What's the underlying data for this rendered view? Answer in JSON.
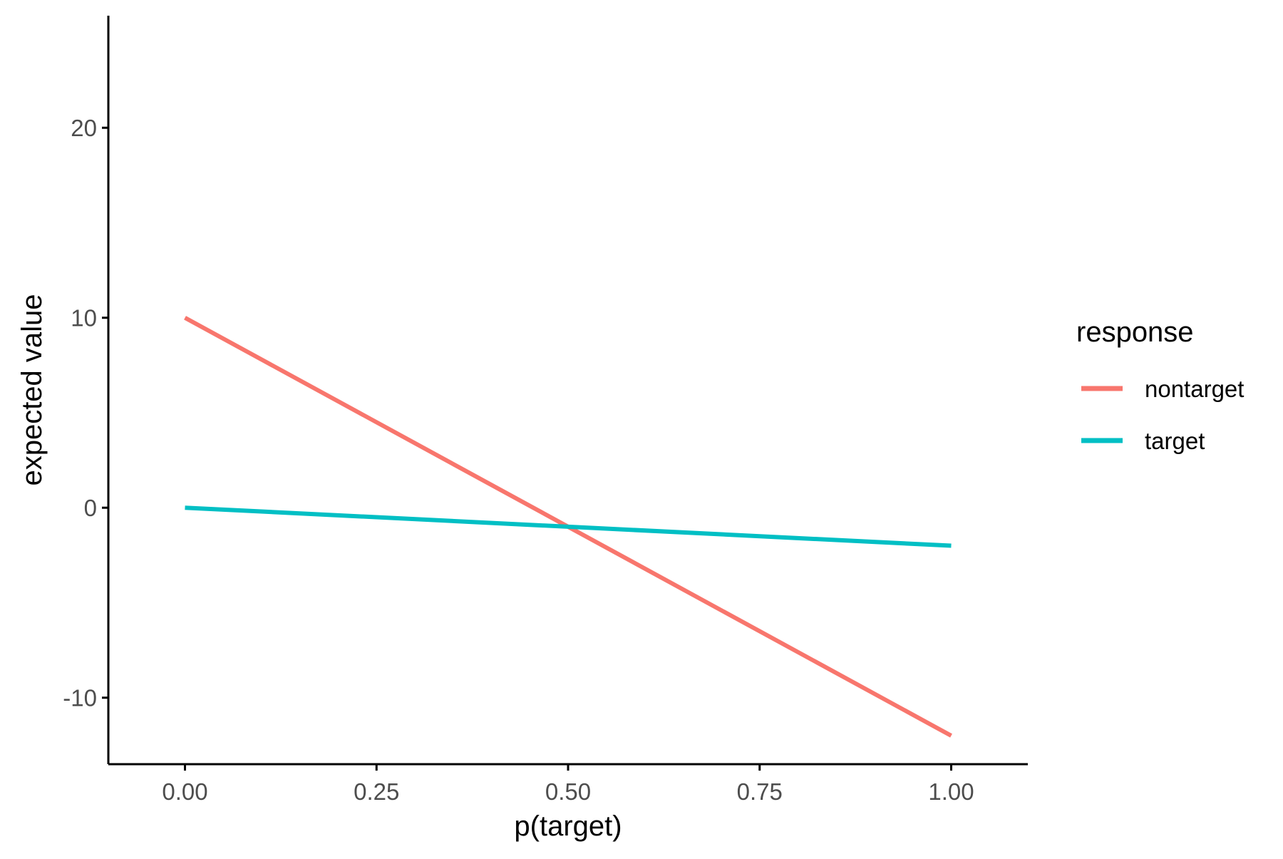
{
  "chart_data": {
    "type": "line",
    "xlabel": "p(target)",
    "ylabel": "expected value",
    "xlim": [
      -0.1,
      1.1
    ],
    "ylim": [
      -13.5,
      25.9
    ],
    "x_ticks": [
      0,
      0.25,
      0.5,
      0.75,
      1
    ],
    "x_tick_labels": [
      "0.00",
      "0.25",
      "0.50",
      "0.75",
      "1.00"
    ],
    "y_ticks": [
      -10,
      0,
      10,
      20
    ],
    "y_tick_labels": [
      "-10",
      "0",
      "10",
      "20"
    ],
    "grid": false,
    "legend": {
      "title": "response",
      "position": "right"
    },
    "series": [
      {
        "name": "nontarget",
        "color": "#F8766D",
        "x": [
          0,
          1
        ],
        "y": [
          10,
          -12
        ]
      },
      {
        "name": "target",
        "color": "#00BFC4",
        "x": [
          0,
          1
        ],
        "y": [
          0,
          -2
        ]
      }
    ]
  }
}
